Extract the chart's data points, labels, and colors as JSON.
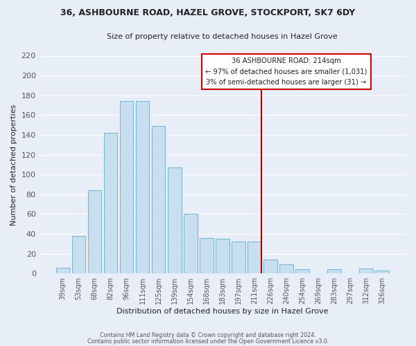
{
  "title": "36, ASHBOURNE ROAD, HAZEL GROVE, STOCKPORT, SK7 6DY",
  "subtitle": "Size of property relative to detached houses in Hazel Grove",
  "xlabel": "Distribution of detached houses by size in Hazel Grove",
  "ylabel": "Number of detached properties",
  "bar_labels": [
    "39sqm",
    "53sqm",
    "68sqm",
    "82sqm",
    "96sqm",
    "111sqm",
    "125sqm",
    "139sqm",
    "154sqm",
    "168sqm",
    "183sqm",
    "197sqm",
    "211sqm",
    "226sqm",
    "240sqm",
    "254sqm",
    "269sqm",
    "283sqm",
    "297sqm",
    "312sqm",
    "326sqm"
  ],
  "bar_values": [
    6,
    38,
    84,
    142,
    174,
    174,
    149,
    107,
    60,
    36,
    35,
    32,
    32,
    14,
    9,
    4,
    0,
    4,
    0,
    5,
    3
  ],
  "bar_color": "#c8dff0",
  "bar_edge_color": "#7ab8d4",
  "reference_line_x": 12,
  "annotation_title": "36 ASHBOURNE ROAD: 214sqm",
  "annotation_line1": "← 97% of detached houses are smaller (1,031)",
  "annotation_line2": "3% of semi-detached houses are larger (31) →",
  "ylim": [
    0,
    220
  ],
  "yticks": [
    0,
    20,
    40,
    60,
    80,
    100,
    120,
    140,
    160,
    180,
    200,
    220
  ],
  "footer1": "Contains HM Land Registry data © Crown copyright and database right 2024.",
  "footer2": "Contains public sector information licensed under the Open Government Licence v3.0.",
  "bg_color": "#e8eef8",
  "grid_color": "#ffffff",
  "ref_line_color": "#aa0000",
  "ann_box_color": "#cc0000",
  "text_color": "#222222",
  "tick_color": "#555555"
}
